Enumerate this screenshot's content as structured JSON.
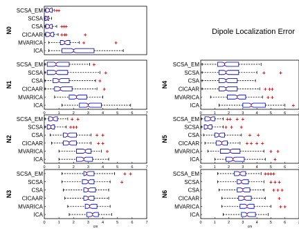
{
  "title": "Dipole Localization Error",
  "chart_data": [
    {
      "type": "boxplot",
      "panel": "N0",
      "xlabel": "",
      "xlim": [
        0,
        7
      ],
      "xticks": [],
      "categories": [
        "SCSA_EM",
        "SCSA",
        "CSA",
        "CICAAR",
        "MVARICA",
        "ICA"
      ],
      "boxes": [
        {
          "min": 0.05,
          "q1": 0.1,
          "median": 0.35,
          "q3": 0.55,
          "max": 0.7,
          "outliers": [
            0.85,
            1.0
          ]
        },
        {
          "min": 0.0,
          "q1": 0.05,
          "median": 0.2,
          "q3": 0.3,
          "max": 0.5,
          "outliers": []
        },
        {
          "min": 0.05,
          "q1": 0.1,
          "median": 0.35,
          "q3": 0.55,
          "max": 0.85,
          "outliers": [
            1.2,
            1.35,
            1.5
          ]
        },
        {
          "min": 0.05,
          "q1": 0.1,
          "median": 0.4,
          "q3": 0.65,
          "max": 0.95,
          "outliers": [
            1.2,
            1.4,
            1.5,
            2.8
          ]
        },
        {
          "min": 0.3,
          "q1": 1.1,
          "median": 1.4,
          "q3": 1.75,
          "max": 2.4,
          "outliers": [
            2.7,
            4.9
          ]
        },
        {
          "min": 0.3,
          "q1": 1.2,
          "median": 2.0,
          "q3": 3.4,
          "max": 5.4,
          "outliers": []
        }
      ]
    },
    {
      "type": "boxplot",
      "panel": "N1",
      "xlabel": "",
      "xlim": [
        0,
        7
      ],
      "xticks": [
        "0",
        "1",
        "2",
        "3",
        "4",
        "5",
        "6",
        "7"
      ],
      "categories": [
        "SCSA_EM",
        "SCSA",
        "CSA",
        "CICAAR",
        "MVARICA",
        "ICA"
      ],
      "boxes": [
        {
          "min": 0.05,
          "q1": 0.2,
          "median": 0.8,
          "q3": 1.7,
          "max": 3.1,
          "outliers": [
            3.4
          ]
        },
        {
          "min": 0.05,
          "q1": 0.2,
          "median": 0.8,
          "q3": 1.6,
          "max": 3.8,
          "outliers": [
            4.2
          ]
        },
        {
          "min": 0.05,
          "q1": 0.6,
          "median": 1.0,
          "q3": 1.7,
          "max": 3.5,
          "outliers": [
            3.8
          ]
        },
        {
          "min": 0.05,
          "q1": 0.7,
          "median": 1.1,
          "q3": 1.9,
          "max": 3.6,
          "outliers": [
            4.1
          ]
        },
        {
          "min": 0.7,
          "q1": 1.7,
          "median": 2.2,
          "q3": 2.9,
          "max": 4.0,
          "outliers": []
        },
        {
          "min": 1.2,
          "q1": 2.4,
          "median": 3.0,
          "q3": 3.9,
          "max": 5.9,
          "outliers": []
        }
      ]
    },
    {
      "type": "boxplot",
      "panel": "N2",
      "xlabel": "",
      "xlim": [
        0,
        7
      ],
      "xticks": [
        "0",
        "1",
        "2",
        "3",
        "4",
        "5",
        "6",
        "7"
      ],
      "categories": [
        "SCSA_EM",
        "SCSA",
        "CSA",
        "CICAAR",
        "MVARICA",
        "ICA"
      ],
      "boxes": [
        {
          "min": 0.05,
          "q1": 0.3,
          "median": 0.6,
          "q3": 0.9,
          "max": 1.6,
          "outliers": [
            1.9,
            2.3
          ]
        },
        {
          "min": 0.05,
          "q1": 0.2,
          "median": 0.45,
          "q3": 0.7,
          "max": 1.5,
          "outliers": [
            1.8,
            2.0,
            2.2
          ]
        },
        {
          "min": 0.4,
          "q1": 1.3,
          "median": 1.6,
          "q3": 2.2,
          "max": 3.2,
          "outliers": [
            3.6,
            4.0
          ]
        },
        {
          "min": 0.5,
          "q1": 1.3,
          "median": 1.7,
          "q3": 2.2,
          "max": 3.2,
          "outliers": [
            3.7,
            4.0
          ]
        },
        {
          "min": 1.0,
          "q1": 2.2,
          "median": 2.8,
          "q3": 3.2,
          "max": 3.9,
          "outliers": [
            4.3
          ]
        },
        {
          "min": 1.0,
          "q1": 2.2,
          "median": 2.7,
          "q3": 3.3,
          "max": 4.4,
          "outliers": []
        }
      ]
    },
    {
      "type": "boxplot",
      "panel": "N3",
      "xlabel": "cm",
      "xlim": [
        0,
        7
      ],
      "xticks": [
        "0",
        "1",
        "2",
        "3",
        "4",
        "5",
        "6",
        "7"
      ],
      "categories": [
        "SCSA_EM",
        "SCSA",
        "CSA",
        "CICAAR",
        "MVARICA",
        "ICA"
      ],
      "boxes": [
        {
          "min": 1.2,
          "q1": 2.7,
          "median": 2.9,
          "q3": 3.4,
          "max": 4.8,
          "outliers": [
            5.5,
            5.9
          ]
        },
        {
          "min": 1.2,
          "q1": 2.6,
          "median": 3.0,
          "q3": 3.4,
          "max": 4.5,
          "outliers": [
            5.3
          ]
        },
        {
          "min": 1.3,
          "q1": 2.7,
          "median": 3.0,
          "q3": 3.5,
          "max": 4.4,
          "outliers": []
        },
        {
          "min": 1.4,
          "q1": 2.7,
          "median": 3.0,
          "q3": 3.4,
          "max": 4.4,
          "outliers": []
        },
        {
          "min": 1.6,
          "q1": 2.8,
          "median": 3.1,
          "q3": 3.6,
          "max": 4.5,
          "outliers": []
        },
        {
          "min": 1.7,
          "q1": 2.9,
          "median": 3.3,
          "q3": 3.7,
          "max": 4.6,
          "outliers": []
        }
      ]
    },
    {
      "type": "boxplot",
      "panel": "N4",
      "xlabel": "",
      "xlim": [
        0,
        7
      ],
      "xticks": [
        "0",
        "1",
        "2",
        "3",
        "4",
        "5",
        "6",
        "7"
      ],
      "categories": [
        "SCSA_EM",
        "SCSA",
        "CSA",
        "CICAAR",
        "MVARICA",
        "ICA"
      ],
      "boxes": [
        {
          "min": 0.1,
          "q1": 1.2,
          "median": 1.7,
          "q3": 2.7,
          "max": 4.3,
          "outliers": []
        },
        {
          "min": 0.1,
          "q1": 1.3,
          "median": 1.8,
          "q3": 2.7,
          "max": 4.0,
          "outliers": [
            4.5,
            5.7
          ]
        },
        {
          "min": 0.1,
          "q1": 1.3,
          "median": 1.8,
          "q3": 2.6,
          "max": 3.9,
          "outliers": []
        },
        {
          "min": 0.1,
          "q1": 1.3,
          "median": 1.8,
          "q3": 2.6,
          "max": 4.2,
          "outliers": [
            4.6,
            4.9,
            5.1
          ]
        },
        {
          "min": 0.7,
          "q1": 1.9,
          "median": 2.6,
          "q3": 3.2,
          "max": 4.4,
          "outliers": [
            4.8,
            5.1
          ]
        },
        {
          "min": 1.3,
          "q1": 3.0,
          "median": 3.6,
          "q3": 4.6,
          "max": 6.0,
          "outliers": [
            6.6
          ]
        }
      ]
    },
    {
      "type": "boxplot",
      "panel": "N5",
      "xlabel": "",
      "xlim": [
        0,
        7
      ],
      "xticks": [
        "0",
        "1",
        "2",
        "3",
        "4",
        "5",
        "6",
        "7"
      ],
      "categories": [
        "SCSA_EM",
        "SCSA",
        "CSA",
        "CICAAR",
        "MVARICA",
        "ICA"
      ],
      "boxes": [
        {
          "min": 0.05,
          "q1": 0.3,
          "median": 0.7,
          "q3": 1.0,
          "max": 1.6,
          "outliers": [
            1.9,
            2.1,
            2.6,
            3.0
          ]
        },
        {
          "min": 0.05,
          "q1": 0.25,
          "median": 0.5,
          "q3": 0.8,
          "max": 1.6,
          "outliers": [
            1.8,
            2.2,
            2.9
          ]
        },
        {
          "min": 0.2,
          "q1": 1.0,
          "median": 1.3,
          "q3": 1.7,
          "max": 2.9,
          "outliers": [
            3.5,
            4.1
          ]
        },
        {
          "min": 0.3,
          "q1": 1.1,
          "median": 1.5,
          "q3": 1.9,
          "max": 2.8,
          "outliers": [
            3.3,
            3.6,
            4.0,
            4.4
          ]
        },
        {
          "min": 0.5,
          "q1": 1.4,
          "median": 2.1,
          "q3": 2.8,
          "max": 4.5,
          "outliers": [
            5.0,
            5.5
          ]
        },
        {
          "min": 1.0,
          "q1": 1.8,
          "median": 2.3,
          "q3": 3.1,
          "max": 4.6,
          "outliers": [
            5.3
          ]
        }
      ]
    },
    {
      "type": "boxplot",
      "panel": "N6",
      "xlabel": "cm",
      "xlim": [
        0,
        7
      ],
      "xticks": [
        "0",
        "1",
        "2",
        "3",
        "4",
        "5",
        "6",
        "7"
      ],
      "categories": [
        "SCSA_EM",
        "SCSA",
        "CSA",
        "CICAAR",
        "MVARICA",
        "ICA"
      ],
      "boxes": [
        {
          "min": 1.2,
          "q1": 2.4,
          "median": 2.8,
          "q3": 3.2,
          "max": 4.3,
          "outliers": [
            4.6,
            4.8,
            5.0,
            5.2
          ]
        },
        {
          "min": 1.2,
          "q1": 2.6,
          "median": 2.9,
          "q3": 3.4,
          "max": 4.5,
          "outliers": [
            5.0,
            5.3,
            5.6
          ]
        },
        {
          "min": 1.3,
          "q1": 2.6,
          "median": 3.0,
          "q3": 3.5,
          "max": 4.5,
          "outliers": [
            5.2,
            5.5,
            5.8
          ]
        },
        {
          "min": 1.5,
          "q1": 2.7,
          "median": 3.1,
          "q3": 3.6,
          "max": 4.6,
          "outliers": [
            5.6
          ]
        },
        {
          "min": 1.5,
          "q1": 2.8,
          "median": 3.3,
          "q3": 3.8,
          "max": 5.0,
          "outliers": [
            5.7,
            6.0
          ]
        },
        {
          "min": 1.6,
          "q1": 2.9,
          "median": 3.3,
          "q3": 3.9,
          "max": 4.8,
          "outliers": []
        }
      ]
    }
  ]
}
